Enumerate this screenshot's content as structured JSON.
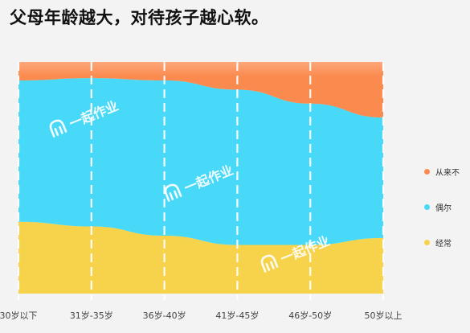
{
  "page": {
    "title": "父母年龄越大，对待孩子越心软。"
  },
  "chart_data": {
    "type": "area",
    "stacked": true,
    "percent": true,
    "categories": [
      "30岁以下",
      "31岁-35岁",
      "36岁-40岁",
      "41岁-45岁",
      "46岁-50岁",
      "50岁以上"
    ],
    "series": [
      {
        "name": "经常",
        "color": "#f6d34a",
        "values": [
          31,
          29,
          25,
          21,
          21,
          24
        ]
      },
      {
        "name": "偶尔",
        "color": "#47d9f7",
        "values": [
          61,
          64,
          67,
          67,
          61,
          52
        ]
      },
      {
        "name": "从来不",
        "color": "#fb8a4e",
        "values": [
          8,
          7,
          8,
          12,
          18,
          24
        ]
      }
    ],
    "ylim": [
      0,
      100
    ],
    "grid": "dashed vertical white",
    "legend_position": "right",
    "watermark": "一起作业"
  }
}
